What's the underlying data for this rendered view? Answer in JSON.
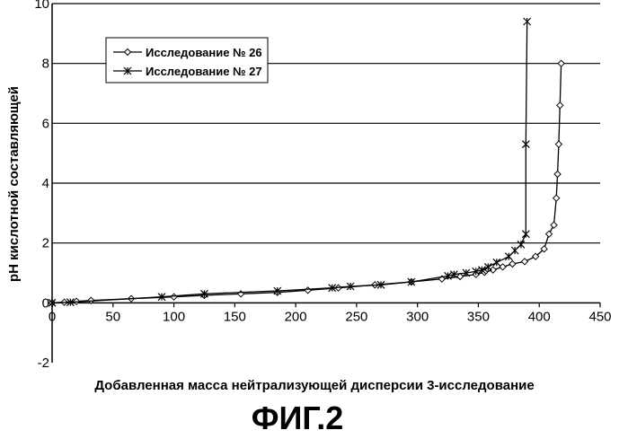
{
  "chart_data": {
    "type": "line",
    "title": "",
    "xlabel": "Добавленная масса нейтрализующей дисперсии 3-исследование",
    "ylabel": "pH кислотной составляющей",
    "xlim": [
      0,
      450
    ],
    "ylim": [
      -2,
      10
    ],
    "x_ticks": [
      "0",
      "50",
      "100",
      "150",
      "200",
      "250",
      "300",
      "350",
      "400",
      "450"
    ],
    "y_ticks": [
      "-2",
      "0",
      "2",
      "4",
      "6",
      "8",
      "10"
    ],
    "grid": "horizontal",
    "legend_position": "top-left",
    "series": [
      {
        "name": "Исследование № 26",
        "marker": "diamond",
        "x": [
          0,
          10,
          20,
          32,
          65,
          100,
          125,
          155,
          185,
          210,
          235,
          265,
          295,
          320,
          335,
          348,
          355,
          362,
          370,
          378,
          388,
          397,
          404,
          408,
          412,
          414,
          415,
          416,
          417,
          418
        ],
        "y": [
          0.0,
          0.02,
          0.05,
          0.08,
          0.14,
          0.2,
          0.25,
          0.3,
          0.35,
          0.42,
          0.5,
          0.6,
          0.7,
          0.8,
          0.88,
          0.95,
          1.02,
          1.1,
          1.2,
          1.3,
          1.38,
          1.55,
          1.8,
          2.3,
          2.6,
          3.5,
          4.3,
          5.3,
          6.6,
          8.0
        ]
      },
      {
        "name": "Исследование № 27",
        "marker": "asterisk",
        "x": [
          0,
          15,
          90,
          125,
          185,
          230,
          245,
          270,
          295,
          325,
          330,
          340,
          348,
          353,
          358,
          365,
          375,
          380,
          385,
          389,
          389,
          390
        ],
        "y": [
          0.0,
          0.02,
          0.2,
          0.3,
          0.4,
          0.5,
          0.55,
          0.6,
          0.7,
          0.9,
          0.95,
          1.0,
          1.05,
          1.1,
          1.2,
          1.35,
          1.55,
          1.75,
          1.95,
          2.3,
          5.3,
          9.4
        ]
      }
    ]
  },
  "figure_label": "ФИГ.2"
}
